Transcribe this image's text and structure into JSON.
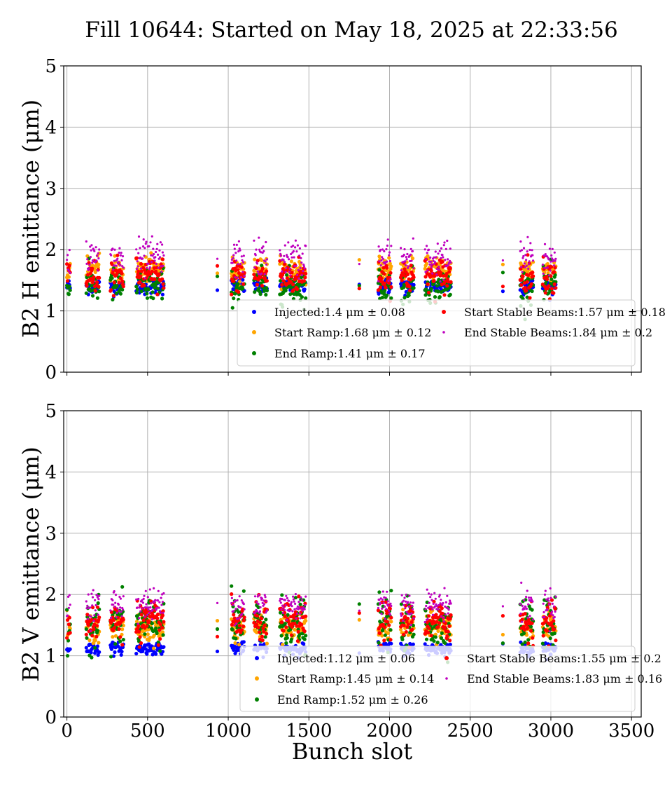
{
  "chart_data": {
    "title": "Fill 10644: Started on May 18, 2025 at 22:33:56",
    "xlabel": "Bunch slot",
    "x_ticks": [
      0,
      500,
      1000,
      1500,
      2000,
      2500,
      3000,
      3500
    ],
    "xlim": [
      -20,
      3560
    ],
    "subplots": [
      {
        "type": "scatter",
        "ylabel": "B2 H emittance (μm)",
        "ylim": [
          0,
          5
        ],
        "y_ticks": [
          0,
          1,
          2,
          3,
          4,
          5
        ],
        "grid": true,
        "legend_position": "lower-right",
        "series": [
          {
            "name": "Injected:1.4 μm ± 0.08",
            "color": "#0000ff",
            "mean": 1.4,
            "std": 0.08,
            "marker_size": "large"
          },
          {
            "name": "Start Ramp:1.68 μm ± 0.12",
            "color": "#ffa500",
            "mean": 1.68,
            "std": 0.12,
            "marker_size": "large"
          },
          {
            "name": "End Ramp:1.41 μm ± 0.17",
            "color": "#008000",
            "mean": 1.41,
            "std": 0.17,
            "marker_size": "large"
          },
          {
            "name": "Start Stable Beams:1.57 μm ± 0.18",
            "color": "#ff0000",
            "mean": 1.57,
            "std": 0.18,
            "marker_size": "large"
          },
          {
            "name": "End Stable Beams:1.84 μm ± 0.2",
            "color": "#bf00bf",
            "mean": 1.84,
            "std": 0.2,
            "marker_size": "small"
          }
        ]
      },
      {
        "type": "scatter",
        "ylabel": "B2 V emittance (μm)",
        "ylim": [
          0,
          5
        ],
        "y_ticks": [
          0,
          1,
          2,
          3,
          4,
          5
        ],
        "grid": true,
        "legend_position": "lower-right",
        "series": [
          {
            "name": "Injected:1.12 μm ± 0.06",
            "color": "#0000ff",
            "mean": 1.12,
            "std": 0.06,
            "marker_size": "large"
          },
          {
            "name": "Start Ramp:1.45 μm ± 0.14",
            "color": "#ffa500",
            "mean": 1.45,
            "std": 0.14,
            "marker_size": "large"
          },
          {
            "name": "End Ramp:1.52 μm ± 0.26",
            "color": "#008000",
            "mean": 1.52,
            "std": 0.26,
            "marker_size": "large"
          },
          {
            "name": "Start Stable Beams:1.55 μm ± 0.2",
            "color": "#ff0000",
            "mean": 1.55,
            "std": 0.2,
            "marker_size": "large"
          },
          {
            "name": "End Stable Beams:1.83 μm ± 0.16",
            "color": "#bf00bf",
            "mean": 1.83,
            "std": 0.16,
            "marker_size": "small"
          }
        ]
      }
    ],
    "bunch_trains": [
      {
        "range": [
          0,
          20
        ]
      },
      {
        "range": [
          120,
          200
        ]
      },
      {
        "range": [
          270,
          350
        ]
      },
      {
        "range": [
          430,
          600
        ]
      },
      {
        "range": [
          930,
          935
        ]
      },
      {
        "range": [
          1020,
          1100
        ]
      },
      {
        "range": [
          1160,
          1240
        ]
      },
      {
        "range": [
          1320,
          1480
        ]
      },
      {
        "range": [
          1810,
          1815
        ]
      },
      {
        "range": [
          1930,
          2010
        ]
      },
      {
        "range": [
          2070,
          2150
        ]
      },
      {
        "range": [
          2220,
          2380
        ]
      },
      {
        "range": [
          2700,
          2705
        ]
      },
      {
        "range": [
          2810,
          2890
        ]
      },
      {
        "range": [
          2950,
          3030
        ]
      }
    ]
  }
}
